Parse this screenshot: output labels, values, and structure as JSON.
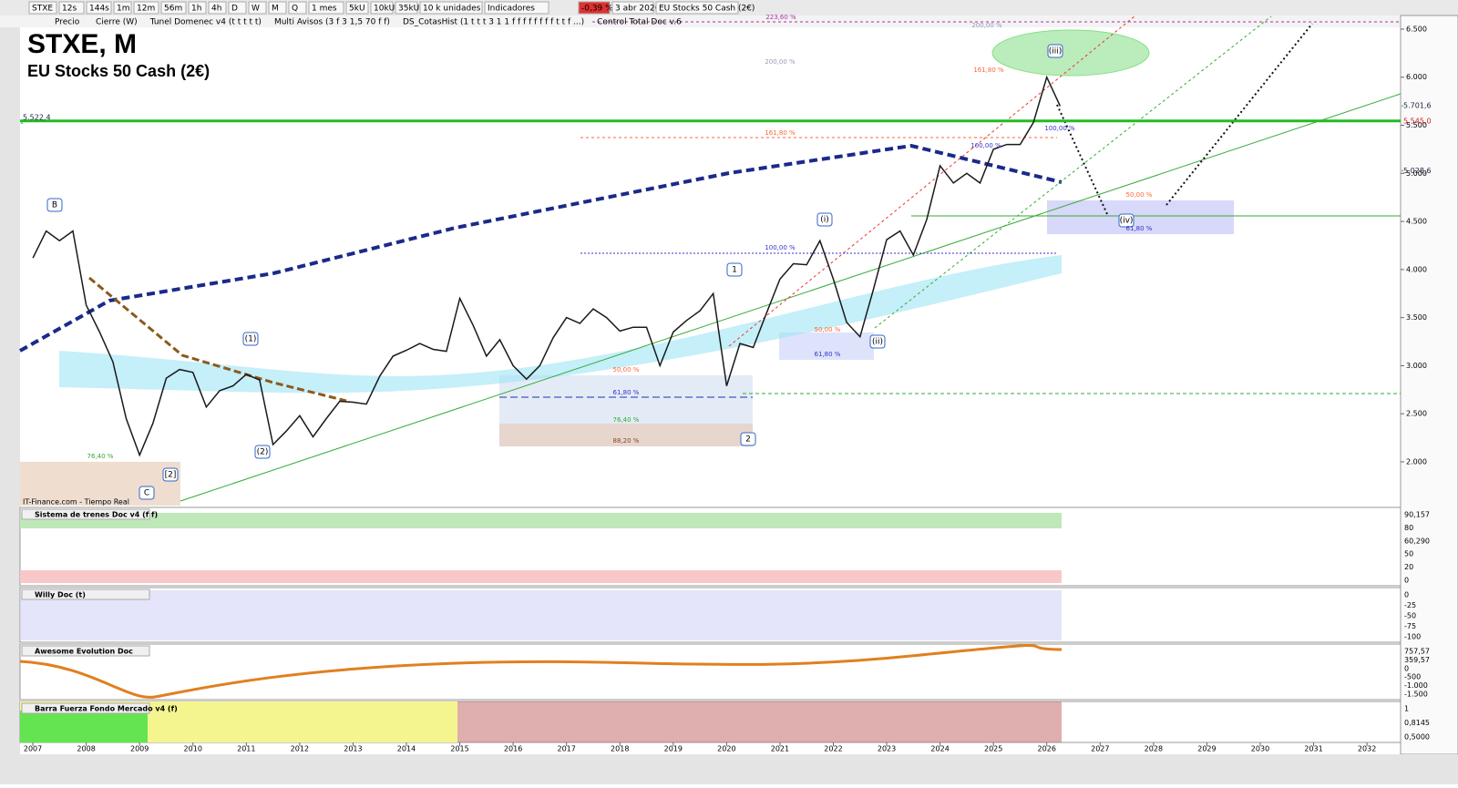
{
  "toolbar": {
    "symbol": "STXE",
    "timeframes": [
      "12s",
      "144s",
      "1m",
      "12m",
      "56m",
      "1h",
      "4h",
      "D",
      "W",
      "M",
      "Q"
    ],
    "period": "1 mes",
    "units": [
      "5kU",
      "10kU",
      "35kU"
    ],
    "unit_select": "10 k unidades",
    "indicators": "Indicadores",
    "change": "-0,39 %",
    "date": "3 abr 2026",
    "instrument": "EU Stocks 50 Cash (2€)"
  },
  "legend_bar": [
    "Cierre (W)",
    "Tunel Domenec v4 (t t t t t)",
    "Multi Avisos (3 f 3 1,5 70 f f)",
    "DS_CotasHist (1 t t t 3 1 1 f f f f f f f f t t f ...)",
    "Control Total Doc v.6"
  ],
  "chart_data": {
    "type": "line",
    "title": "STXE, M",
    "subtitle": "EU Stocks 50 Cash (2€)",
    "source": "IT-Finance.com - Tiempo Real",
    "x": [
      2007,
      2007.25,
      2007.5,
      2007.75,
      2008,
      2008.25,
      2008.5,
      2008.75,
      2009,
      2009.25,
      2009.5,
      2009.75,
      2010,
      2010.25,
      2010.5,
      2010.75,
      2011,
      2011.25,
      2011.5,
      2011.75,
      2012,
      2012.25,
      2012.5,
      2012.75,
      2013,
      2013.25,
      2013.5,
      2013.75,
      2014,
      2014.25,
      2014.5,
      2014.75,
      2015,
      2015.25,
      2015.5,
      2015.75,
      2016,
      2016.25,
      2016.5,
      2016.75,
      2017,
      2017.25,
      2017.5,
      2017.75,
      2018,
      2018.25,
      2018.5,
      2018.75,
      2019,
      2019.25,
      2019.5,
      2019.75,
      2020,
      2020.25,
      2020.5,
      2020.75,
      2021,
      2021.25,
      2021.5,
      2021.75,
      2022,
      2022.25,
      2022.5,
      2022.75,
      2023,
      2023.25,
      2023.5,
      2023.75,
      2024,
      2024.25,
      2024.5,
      2024.75,
      2025,
      2025.25,
      2025.5,
      2025.75,
      2026,
      2026.25
    ],
    "series": [
      {
        "name": "Precio",
        "color": "#1a1a1a",
        "values": [
          4120,
          4400,
          4300,
          4400,
          3630,
          3350,
          3040,
          2450,
          2070,
          2400,
          2870,
          2960,
          2930,
          2570,
          2740,
          2790,
          2910,
          2850,
          2180,
          2320,
          2480,
          2260,
          2450,
          2630,
          2620,
          2600,
          2890,
          3100,
          3160,
          3230,
          3170,
          3150,
          3700,
          3420,
          3100,
          3270,
          3000,
          2860,
          3000,
          3290,
          3500,
          3440,
          3590,
          3500,
          3360,
          3400,
          3400,
          3000,
          3350,
          3470,
          3570,
          3750,
          2790,
          3230,
          3190,
          3550,
          3900,
          4060,
          4050,
          4300,
          3900,
          3450,
          3300,
          3790,
          4310,
          4400,
          4150,
          4520,
          5080,
          4900,
          5000,
          4900,
          5250,
          5300,
          5300,
          5530,
          6000,
          5700
        ]
      }
    ],
    "ylim": [
      1545,
      6566
    ],
    "yticks": [
      {
        "value": 2000,
        "label": "2.000"
      },
      {
        "value": 2500,
        "label": "2.500"
      },
      {
        "value": 3000,
        "label": "3.000"
      },
      {
        "value": 3500,
        "label": "3.500"
      },
      {
        "value": 4000,
        "label": "4.000"
      },
      {
        "value": 4500,
        "label": "4.500"
      },
      {
        "value": 5000,
        "label": "5.000"
      },
      {
        "value": 5500,
        "label": "5.500"
      },
      {
        "value": 6000,
        "label": "6.000"
      },
      {
        "value": 6500,
        "label": "6.500"
      }
    ],
    "xlim": [
      2006.76,
      2032.63
    ],
    "xticks": [
      2007,
      2008,
      2009,
      2010,
      2011,
      2012,
      2013,
      2014,
      2015,
      2016,
      2017,
      2018,
      2019,
      2020,
      2021,
      2022,
      2023,
      2024,
      2025,
      2026,
      2027,
      2028,
      2029,
      2030,
      2031,
      2032
    ],
    "price_labels": [
      {
        "value": 5701.6,
        "label": "5.701,6"
      },
      {
        "value": 5545,
        "label": "5.545,0"
      },
      {
        "value": 5028.6,
        "label": "5.028,6"
      },
      {
        "value": 5522.4,
        "label": "5.522,4"
      }
    ],
    "wave_labels": [
      "B",
      "C",
      "[2]",
      "(1)",
      "(2)",
      "1",
      "2",
      "(i)",
      "(ii)",
      "(iii)",
      "(iv)"
    ],
    "fib_labels": [
      "223,60 %",
      "200,00 %",
      "200,00 %",
      "161,80 %",
      "161,80 %",
      "100,00 %",
      "100,00 %",
      "100,00 %",
      "50,00 %",
      "61,80 %",
      "50,00 %",
      "61,80 %",
      "50,00 %",
      "61,80 %",
      "76,40 %",
      "88,20 %",
      "76,40 %"
    ]
  },
  "panels": [
    {
      "title": "Sistema de trenes Doc v4 (f f)",
      "ticks": [
        "90,157",
        "80",
        "60,290",
        "50",
        "20",
        "0"
      ]
    },
    {
      "title": "Willy Doc (t)",
      "ticks": [
        "0",
        "-25",
        "-50",
        "-75",
        "-100"
      ]
    },
    {
      "title": "Awesome Evolution Doc",
      "ticks": [
        "757,57",
        "359,57",
        "0",
        "-500",
        "-1.000",
        "-1.500"
      ]
    },
    {
      "title": "Barra Fuerza Fondo Mercado v4 (f)",
      "ticks": [
        "1",
        "0,8145",
        "0,5000"
      ]
    }
  ]
}
